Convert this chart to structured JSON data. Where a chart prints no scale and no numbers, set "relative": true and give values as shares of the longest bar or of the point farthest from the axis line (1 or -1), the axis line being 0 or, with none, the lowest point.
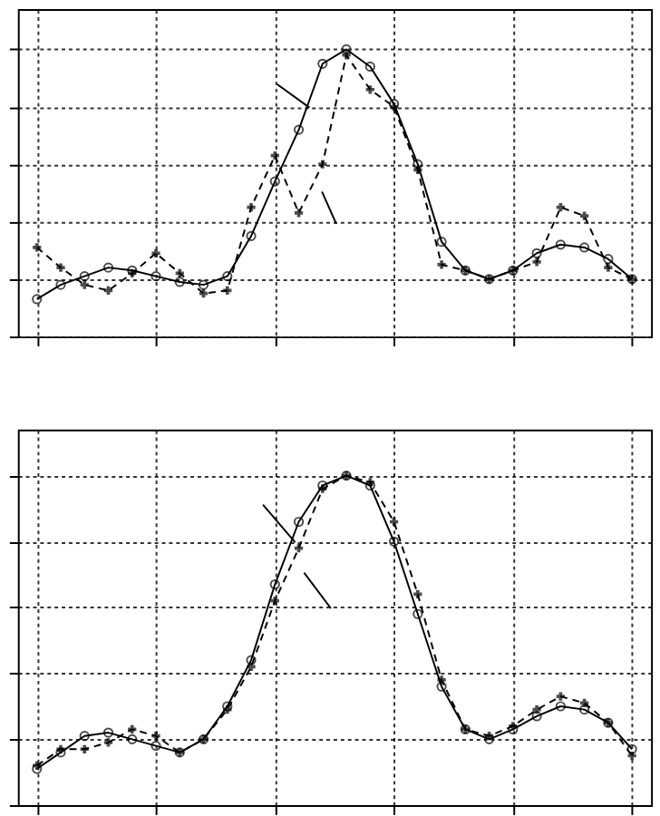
{
  "chart_data": [
    {
      "type": "line",
      "relative": true,
      "grid": true,
      "tick_labels": false,
      "categories": [
        null,
        null,
        null,
        null,
        null,
        null,
        null,
        null,
        null,
        null,
        null,
        null,
        null,
        null,
        null,
        null,
        null,
        null,
        null,
        null,
        null,
        null,
        null,
        null,
        null,
        null
      ],
      "series": [
        {
          "color": "#000000",
          "marker": "circle",
          "line_style": "solid",
          "values": [
            0.13,
            0.18,
            0.21,
            0.24,
            0.23,
            0.21,
            0.19,
            0.18,
            0.21,
            0.35,
            0.54,
            0.72,
            0.95,
            1,
            0.94,
            0.81,
            0.6,
            0.33,
            0.23,
            0.2,
            0.23,
            0.29,
            0.32,
            0.31,
            0.27,
            0.2
          ]
        },
        {
          "color": "#000000",
          "marker": "cross",
          "line_style": "dashed",
          "values": [
            0.31,
            0.24,
            0.18,
            0.16,
            0.22,
            0.29,
            0.22,
            0.15,
            0.16,
            0.45,
            0.63,
            0.43,
            0.6,
            0.98,
            0.86,
            0.8,
            0.58,
            0.25,
            0.23,
            0.2,
            0.23,
            0.26,
            0.45,
            0.42,
            0.24,
            0.2
          ]
        }
      ]
    },
    {
      "type": "line",
      "relative": true,
      "grid": true,
      "tick_labels": false,
      "categories": [
        null,
        null,
        null,
        null,
        null,
        null,
        null,
        null,
        null,
        null,
        null,
        null,
        null,
        null,
        null,
        null,
        null,
        null,
        null,
        null,
        null,
        null,
        null,
        null,
        null,
        null
      ],
      "series": [
        {
          "color": "#000000",
          "marker": "circle",
          "line_style": "solid",
          "values": [
            0.11,
            0.16,
            0.21,
            0.22,
            0.2,
            0.18,
            0.16,
            0.2,
            0.3,
            0.44,
            0.67,
            0.86,
            0.97,
            1,
            0.97,
            0.8,
            0.58,
            0.36,
            0.23,
            0.2,
            0.23,
            0.27,
            0.3,
            0.29,
            0.25,
            0.17
          ]
        },
        {
          "color": "#000000",
          "marker": "cross",
          "line_style": "dashed",
          "values": [
            0.12,
            0.17,
            0.17,
            0.19,
            0.23,
            0.21,
            0.16,
            0.2,
            0.29,
            0.42,
            0.62,
            0.78,
            0.96,
            1,
            0.98,
            0.86,
            0.64,
            0.38,
            0.23,
            0.21,
            0.24,
            0.29,
            0.33,
            0.31,
            0.25,
            0.15
          ]
        }
      ]
    }
  ]
}
